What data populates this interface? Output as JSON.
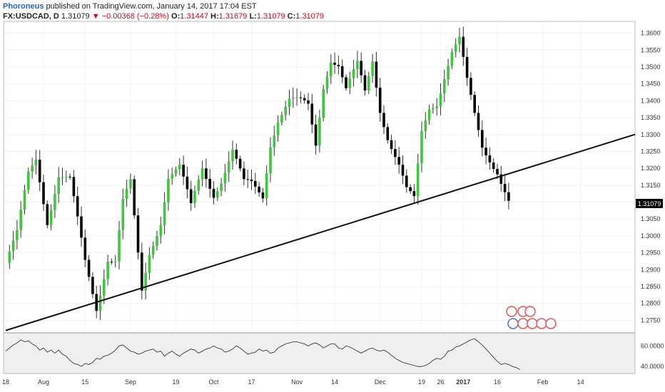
{
  "header": {
    "author": "Phoroneus",
    "published": "published on TradingView.com, January 14, 2017 17:04 EST",
    "symbol": "FX:USDCAD, D",
    "last": "1.31079",
    "arrow": "▼",
    "change": "−0.00368 (−0.28%)",
    "o_label": "O:",
    "o": "1.31447",
    "h_label": "H:",
    "h": "1.31679",
    "l_label": "L:",
    "l": "1.31079",
    "c_label": "C:",
    "c": "1.31079"
  },
  "colors": {
    "up": "#3cc73c",
    "down": "#000000",
    "text_red": "#d0021b",
    "link_blue": "#2962c9"
  },
  "chart_data": [
    {
      "type": "candlestick",
      "title": "FX:USDCAD, D",
      "xlabel": "",
      "ylabel": "",
      "ylim": [
        1.2715,
        1.3635
      ],
      "y_ticks": [
        "1.2750",
        "1.2800",
        "1.2850",
        "1.2900",
        "1.2950",
        "1.3000",
        "1.3050",
        "1.3100",
        "1.3150",
        "1.3200",
        "1.3250",
        "1.3300",
        "1.3350",
        "1.3400",
        "1.3450",
        "1.3500",
        "1.3550",
        "1.3600"
      ],
      "x_ticks": [
        {
          "label": "18",
          "index": 0
        },
        {
          "label": "Aug",
          "index": 10
        },
        {
          "label": "15",
          "index": 21
        },
        {
          "label": "Sep",
          "index": 33
        },
        {
          "label": "19",
          "index": 45
        },
        {
          "label": "Oct",
          "index": 55
        },
        {
          "label": "17",
          "index": 65
        },
        {
          "label": "Nov",
          "index": 77
        },
        {
          "label": "14",
          "index": 87
        },
        {
          "label": "Dec",
          "index": 99
        },
        {
          "label": "19",
          "index": 110
        },
        {
          "label": "26",
          "index": 115
        },
        {
          "label": "2017",
          "index": 121
        },
        {
          "label": "16",
          "index": 130
        },
        {
          "label": "Feb",
          "index": 142
        },
        {
          "label": "14",
          "index": 152
        }
      ],
      "last_price_label": "1.31079",
      "trendline": {
        "from": {
          "index": 0,
          "price": 1.272
        },
        "to": {
          "index": 162,
          "price": 1.3285
        }
      },
      "grid": true,
      "waypoints": [
        [
          0,
          1.292
        ],
        [
          3,
          1.3
        ],
        [
          6,
          1.318
        ],
        [
          8,
          1.323
        ],
        [
          11,
          1.305
        ],
        [
          14,
          1.318
        ],
        [
          17,
          1.316
        ],
        [
          21,
          1.292
        ],
        [
          24,
          1.279
        ],
        [
          27,
          1.294
        ],
        [
          29,
          1.293
        ],
        [
          31,
          1.31
        ],
        [
          33,
          1.315
        ],
        [
          36,
          1.283
        ],
        [
          38,
          1.295
        ],
        [
          41,
          1.305
        ],
        [
          43,
          1.318
        ],
        [
          46,
          1.32
        ],
        [
          49,
          1.308
        ],
        [
          52,
          1.32
        ],
        [
          55,
          1.313
        ],
        [
          57,
          1.317
        ],
        [
          60,
          1.325
        ],
        [
          63,
          1.315
        ],
        [
          65,
          1.315
        ],
        [
          68,
          1.312
        ],
        [
          70,
          1.328
        ],
        [
          72,
          1.335
        ],
        [
          75,
          1.34
        ],
        [
          78,
          1.339
        ],
        [
          80,
          1.338
        ],
        [
          82,
          1.327
        ],
        [
          84,
          1.345
        ],
        [
          86,
          1.353
        ],
        [
          88,
          1.351
        ],
        [
          90,
          1.343
        ],
        [
          93,
          1.35
        ],
        [
          95,
          1.342
        ],
        [
          97,
          1.352
        ],
        [
          99,
          1.338
        ],
        [
          101,
          1.33
        ],
        [
          104,
          1.321
        ],
        [
          106,
          1.313
        ],
        [
          108,
          1.31
        ],
        [
          110,
          1.33
        ],
        [
          112,
          1.338
        ],
        [
          114,
          1.34
        ],
        [
          116,
          1.348
        ],
        [
          118,
          1.355
        ],
        [
          120,
          1.358
        ],
        [
          122,
          1.345
        ],
        [
          124,
          1.335
        ],
        [
          126,
          1.326
        ],
        [
          128,
          1.323
        ],
        [
          130,
          1.32
        ],
        [
          132,
          1.314
        ],
        [
          133,
          1.3108
        ]
      ]
    },
    {
      "type": "line",
      "title": "",
      "ylim": [
        36,
        70
      ],
      "y_ticks": [
        "40.0000",
        "60.0000"
      ],
      "series": [
        {
          "values": [
            55,
            58,
            61,
            63,
            66,
            64,
            65,
            62,
            60,
            56,
            58,
            54,
            56,
            53,
            56,
            52,
            50,
            46,
            43,
            42,
            40,
            43,
            42,
            44,
            48,
            47,
            50,
            51,
            53,
            56,
            60,
            61,
            58,
            55,
            54,
            52,
            53,
            55,
            56,
            57,
            54,
            55,
            50,
            53,
            55,
            52,
            50,
            53,
            55,
            57,
            56,
            53,
            55,
            57,
            58,
            60,
            58,
            57,
            54,
            55,
            57,
            60,
            58,
            55,
            52,
            53,
            54,
            57,
            55,
            56,
            53,
            54,
            58,
            60,
            62,
            63,
            64,
            64,
            63,
            62,
            60,
            62,
            63,
            61,
            58,
            60,
            62,
            62,
            58,
            57,
            60,
            59,
            57,
            55,
            53,
            55,
            57,
            58,
            56,
            55,
            56,
            54,
            51,
            48,
            46,
            44,
            43,
            42,
            41,
            40,
            40,
            41,
            43,
            46,
            48,
            47,
            50,
            55,
            56,
            59,
            60,
            62,
            64,
            66,
            67,
            64,
            61,
            57,
            53,
            49,
            45,
            42,
            43,
            42,
            40,
            39,
            37
          ]
        }
      ]
    }
  ]
}
